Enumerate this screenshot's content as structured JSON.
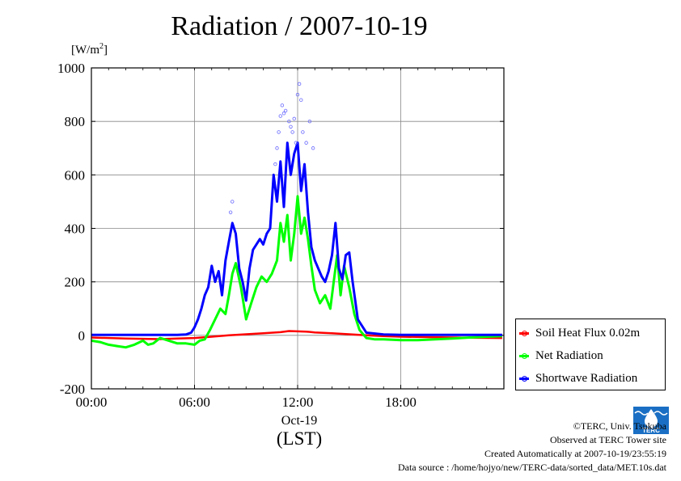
{
  "chart_data": {
    "type": "line",
    "title": "Radiation / 2007-10-19",
    "ylabel": "[W/m2]",
    "ylabel_base": "[W/m",
    "ylabel_sup": "2",
    "ylabel_end": "]",
    "xlabel": "(LST)",
    "x_date_label": "Oct-19",
    "ylim": [
      -200,
      1000
    ],
    "xlim_hours": [
      0,
      24
    ],
    "yticks": [
      -200,
      0,
      200,
      400,
      600,
      800,
      1000
    ],
    "ytick_labels": [
      "-200",
      "0",
      "200",
      "400",
      "600",
      "800",
      "1000"
    ],
    "xticks_hours": [
      0,
      6,
      12,
      18
    ],
    "xtick_labels": [
      "00:00",
      "06:00",
      "12:00",
      "18:00"
    ],
    "grid": true,
    "legend_position": "right-bottom",
    "series": [
      {
        "name": "Soil Heat Flux 0.02m",
        "color": "#ff0000",
        "x": [
          0,
          2,
          4,
          5,
          6,
          7,
          8,
          9,
          10,
          11,
          11.5,
          12,
          12.5,
          13,
          14,
          15,
          16,
          17,
          18,
          20,
          22,
          23.9
        ],
        "y": [
          -8,
          -12,
          -14,
          -12,
          -10,
          -5,
          0,
          4,
          8,
          12,
          16,
          15,
          14,
          11,
          8,
          4,
          0,
          -3,
          -5,
          -7,
          -9,
          -10
        ]
      },
      {
        "name": "Net Radiation",
        "color": "#00ff00",
        "x": [
          0,
          0.5,
          1,
          1.5,
          2,
          2.5,
          3,
          3.3,
          3.6,
          4,
          4.5,
          5,
          5.5,
          6,
          6.3,
          6.6,
          6.9,
          7.2,
          7.5,
          7.8,
          8,
          8.2,
          8.4,
          8.7,
          9,
          9.3,
          9.6,
          9.9,
          10.2,
          10.5,
          10.8,
          11,
          11.2,
          11.4,
          11.6,
          11.8,
          12,
          12.2,
          12.4,
          12.6,
          12.8,
          13,
          13.3,
          13.6,
          13.9,
          14.1,
          14.3,
          14.5,
          14.7,
          15,
          15.3,
          15.6,
          16,
          16.5,
          17,
          18,
          19,
          20,
          21,
          22,
          23,
          23.9
        ],
        "y": [
          -20,
          -25,
          -35,
          -40,
          -45,
          -35,
          -20,
          -35,
          -30,
          -10,
          -20,
          -30,
          -30,
          -35,
          -20,
          -15,
          20,
          60,
          100,
          80,
          150,
          230,
          270,
          180,
          60,
          120,
          180,
          220,
          200,
          230,
          280,
          420,
          350,
          450,
          280,
          380,
          520,
          380,
          440,
          360,
          260,
          170,
          120,
          150,
          100,
          200,
          300,
          150,
          260,
          180,
          80,
          20,
          -10,
          -15,
          -15,
          -18,
          -18,
          -15,
          -12,
          -8,
          -5,
          -3
        ]
      },
      {
        "name": "Shortwave Radiation",
        "color": "#0000ff",
        "x": [
          0,
          1,
          2,
          3,
          4,
          5,
          5.5,
          5.8,
          6,
          6.2,
          6.4,
          6.6,
          6.8,
          7,
          7.2,
          7.4,
          7.6,
          7.8,
          8,
          8.2,
          8.4,
          8.6,
          8.8,
          9,
          9.2,
          9.4,
          9.6,
          9.8,
          10,
          10.2,
          10.4,
          10.6,
          10.8,
          11,
          11.2,
          11.4,
          11.6,
          11.8,
          12,
          12.2,
          12.4,
          12.6,
          12.8,
          13,
          13.2,
          13.4,
          13.6,
          13.8,
          14,
          14.2,
          14.4,
          14.6,
          14.8,
          15,
          15.2,
          15.5,
          16,
          17,
          18,
          20,
          22,
          23.9
        ],
        "y": [
          2,
          2,
          2,
          2,
          2,
          2,
          3,
          10,
          30,
          60,
          100,
          150,
          180,
          260,
          200,
          240,
          150,
          280,
          350,
          420,
          380,
          250,
          200,
          130,
          250,
          320,
          340,
          360,
          340,
          380,
          400,
          600,
          500,
          650,
          480,
          720,
          600,
          680,
          720,
          540,
          640,
          460,
          330,
          280,
          250,
          220,
          200,
          240,
          300,
          420,
          250,
          210,
          300,
          310,
          200,
          60,
          10,
          3,
          2,
          2,
          2,
          2
        ]
      }
    ],
    "scatter_points": {
      "name": "Shortwave Radiation",
      "x": [
        10.8,
        10.9,
        11.0,
        11.1,
        11.3,
        11.5,
        11.6,
        11.7,
        11.9,
        12.0,
        12.1,
        12.2,
        12.3,
        12.5,
        12.7,
        12.9,
        8.1,
        8.2,
        10.7,
        11.2,
        11.8
      ],
      "y": [
        700,
        760,
        820,
        860,
        840,
        800,
        780,
        760,
        720,
        900,
        940,
        880,
        760,
        720,
        800,
        700,
        460,
        500,
        640,
        830,
        810
      ]
    }
  },
  "credits": {
    "line1": "©TERC, Univ. Tsukuba",
    "line2": "Observed at TERC Tower site",
    "line3": "Created Automatically at 2007-10-19/23:55:19",
    "line4": "Data source : /home/hojyo/new/TERC-data/sorted_data/MET.10s.dat"
  },
  "logo": {
    "text": "TERC",
    "color": "#1a6fc4"
  }
}
